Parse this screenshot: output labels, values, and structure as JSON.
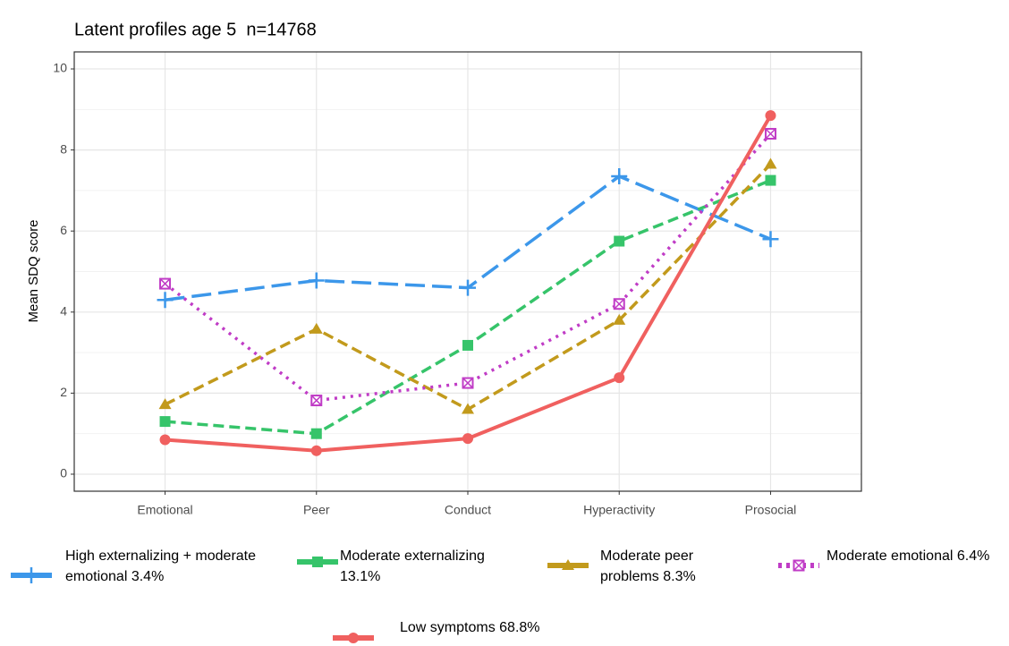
{
  "chart_data": {
    "type": "line",
    "title": "Latent profiles age 5  n=14768",
    "y_label": "Mean SDQ score",
    "categories": [
      "Emotional",
      "Peer",
      "Conduct",
      "Hyperactivity",
      "Prosocial"
    ],
    "series": [
      {
        "name": "High externalizing + moderate emotional 3.4%",
        "color": "#3c97ea",
        "dash": "longdash",
        "marker": "plus",
        "values": [
          4.3,
          4.78,
          4.6,
          7.35,
          5.8
        ]
      },
      {
        "name": "Moderate externalizing 13.1%",
        "color": "#36c46a",
        "dash": "dash",
        "marker": "square",
        "values": [
          1.3,
          1.0,
          3.18,
          5.75,
          7.25
        ]
      },
      {
        "name": "Moderate peer problems 8.3%",
        "color": "#c29a1c",
        "dash": "dash",
        "marker": "triangle",
        "values": [
          1.72,
          3.58,
          1.6,
          3.8,
          7.65
        ]
      },
      {
        "name": "Moderate emotional 6.4%",
        "color": "#c03cc6",
        "dash": "dot",
        "marker": "boxx",
        "values": [
          4.7,
          1.82,
          2.25,
          4.2,
          8.4
        ]
      },
      {
        "name": "Low symptoms 68.8%",
        "color": "#f0605f",
        "dash": "solid",
        "marker": "circle",
        "values": [
          0.85,
          0.58,
          0.88,
          2.38,
          8.85
        ]
      }
    ],
    "ylim": [
      -0.42,
      10.42
    ],
    "yticks": [
      0,
      2,
      4,
      6,
      8,
      10
    ],
    "minor_yticks": [
      1,
      3,
      5,
      7,
      9
    ],
    "grid": true,
    "legend": "bottom"
  }
}
